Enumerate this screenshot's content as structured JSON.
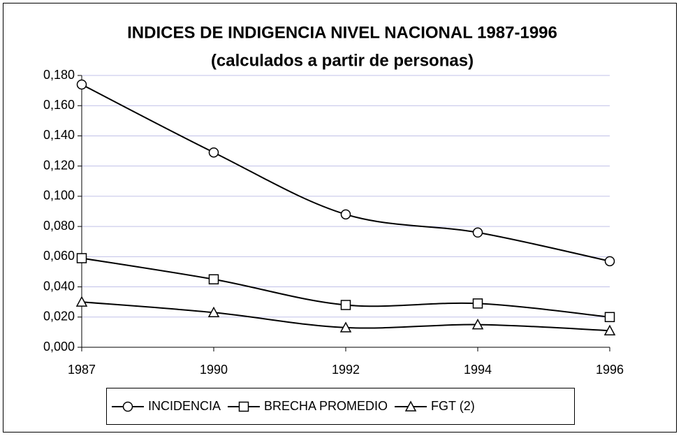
{
  "chart_data": {
    "type": "line",
    "title": "INDICES DE INDIGENCIA NIVEL NACIONAL 1987-1996",
    "subtitle": "(calculados a partir de personas)",
    "categories": [
      "1987",
      "1990",
      "1992",
      "1994",
      "1996"
    ],
    "series": [
      {
        "name": "INCIDENCIA",
        "color": "#000000",
        "marker": "circle",
        "values": [
          0.174,
          0.129,
          0.088,
          0.076,
          0.057
        ]
      },
      {
        "name": "BRECHA PROMEDIO",
        "color": "#000000",
        "marker": "square",
        "values": [
          0.059,
          0.045,
          0.028,
          0.029,
          0.02
        ]
      },
      {
        "name": "FGT (2)",
        "color": "#000000",
        "marker": "triangle",
        "values": [
          0.03,
          0.023,
          0.013,
          0.015,
          0.011
        ]
      }
    ],
    "ylim": [
      0,
      0.18
    ],
    "yticks": [
      {
        "value": 0,
        "label": "0,000"
      },
      {
        "value": 0.02,
        "label": "0,020"
      },
      {
        "value": 0.04,
        "label": "0,040"
      },
      {
        "value": 0.06,
        "label": "0,060"
      },
      {
        "value": 0.08,
        "label": "0,080"
      },
      {
        "value": 0.1,
        "label": "0,100"
      },
      {
        "value": 0.12,
        "label": "0,120"
      },
      {
        "value": 0.14,
        "label": "0,140"
      },
      {
        "value": 0.16,
        "label": "0,160"
      },
      {
        "value": 0.18,
        "label": "0,180"
      }
    ],
    "grid": true,
    "legend": "bottom"
  }
}
